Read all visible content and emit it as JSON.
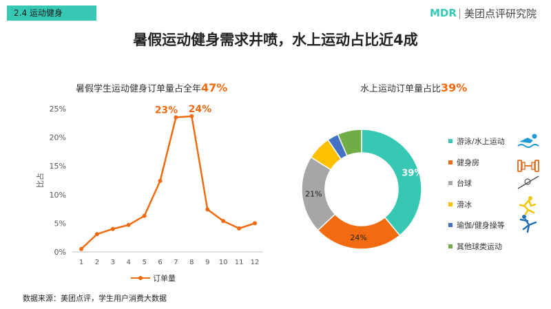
{
  "section_tag": "2.4  运动健身",
  "logo": {
    "mark": "MDR",
    "text": "美团点评研究院"
  },
  "title": "暑假运动健身需求井喷，水上运动占比近4成",
  "left_subtitle": {
    "text": "暑假学生运动健身订单量占全年",
    "highlight": "47%"
  },
  "right_subtitle": {
    "text": "水上运动订单量占比",
    "highlight": "39%"
  },
  "source": "数据来源：美团点评，学生用户消费大数据",
  "colors": {
    "accent": "#f06a10",
    "teal": "#37c8b4"
  },
  "chart_data": [
    {
      "type": "line",
      "x": [
        "1",
        "2",
        "3",
        "4",
        "5",
        "6",
        "7",
        "8",
        "9",
        "10",
        "11",
        "12"
      ],
      "series": [
        {
          "name": "订单量",
          "values": [
            0.5,
            3.1,
            4.0,
            4.7,
            6.3,
            12.4,
            23.5,
            23.7,
            7.4,
            5.4,
            4.1,
            5.0
          ],
          "color": "#f06a10"
        }
      ],
      "yticks": [
        "0%",
        "5%",
        "10%",
        "15%",
        "20%",
        "25%"
      ],
      "ylim": [
        0,
        25
      ],
      "ylabel": "比占",
      "annotations": [
        {
          "x": "7",
          "label": "23%"
        },
        {
          "x": "8",
          "label": "24%"
        }
      ],
      "grid": false,
      "legend": "bottom"
    },
    {
      "type": "pie",
      "donut": true,
      "slices": [
        {
          "label": "游泳/水上运动",
          "value": 39,
          "color": "#37c8b4",
          "data_label": "39%"
        },
        {
          "label": "健身房",
          "value": 24,
          "color": "#f36b11",
          "data_label": "24%"
        },
        {
          "label": "台球",
          "value": 21,
          "color": "#a6a6a6",
          "data_label": "21%"
        },
        {
          "label": "滑冰",
          "value": 6.5,
          "color": "#ffc000",
          "data_label": ""
        },
        {
          "label": "瑜伽/健身操等",
          "value": 3,
          "color": "#4472c4",
          "data_label": ""
        },
        {
          "label": "其他球类运动",
          "value": 6.5,
          "color": "#70ad47",
          "data_label": ""
        }
      ],
      "legend": "right"
    }
  ],
  "icons": [
    "swimmer-icon",
    "dumbbell-icon",
    "billiards-cue-icon",
    "skater-icon",
    "yoga-pose-icon"
  ]
}
